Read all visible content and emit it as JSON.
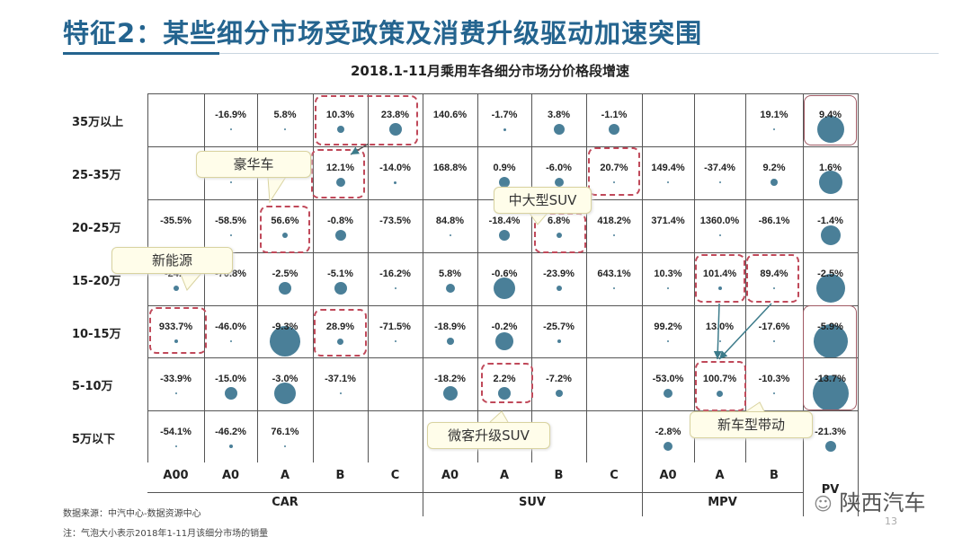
{
  "header": {
    "title": "特征2：某些细分市场受政策及消费升级驱动加速突围"
  },
  "chart_data": {
    "type": "bubble-table",
    "title": "2018.1-11月乘用车各细分市场分价格段增速",
    "rows": [
      "35万以上",
      "25-35万",
      "20-25万",
      "15-20万",
      "10-15万",
      "5-10万",
      "5万以下"
    ],
    "columns": [
      "A00",
      "A0",
      "A",
      "B",
      "C",
      "A0",
      "A",
      "B",
      "C",
      "A0",
      "A",
      "B",
      "PV"
    ],
    "groups": [
      {
        "name": "CAR",
        "span": 5
      },
      {
        "name": "SUV",
        "span": 4
      },
      {
        "name": "MPV",
        "span": 3
      }
    ],
    "bubble_meaning": "气泡大小表示2018年1-11月该细分市场的销量",
    "values": [
      [
        "",
        "-16.9%",
        "5.8%",
        "10.3%",
        "23.8%",
        "140.6%",
        "-1.7%",
        "3.8%",
        "-1.1%",
        "",
        "",
        "19.1%",
        "9.4%"
      ],
      [
        "",
        "",
        "",
        "12.1%",
        "-14.0%",
        "168.8%",
        "0.9%",
        "-6.0%",
        "20.7%",
        "149.4%",
        "-37.4%",
        "9.2%",
        "1.6%"
      ],
      [
        "-35.5%",
        "-58.5%",
        "56.6%",
        "-0.8%",
        "-73.5%",
        "84.8%",
        "-18.4%",
        "6.8%",
        "418.2%",
        "371.4%",
        "1360.0%",
        "-86.1%",
        "-1.4%"
      ],
      [
        "-24.6",
        "-70.8%",
        "-2.5%",
        "-5.1%",
        "-16.2%",
        "5.8%",
        "-0.6%",
        "-23.9%",
        "643.1%",
        "10.3%",
        "101.4%",
        "89.4%",
        "-2.5%"
      ],
      [
        "933.7%",
        "-46.0%",
        "-9.3%",
        "28.9%",
        "-71.5%",
        "-18.9%",
        "-0.2%",
        "-25.7%",
        "",
        "99.2%",
        "13.0%",
        "-17.6%",
        "-5.9%"
      ],
      [
        "-33.9%",
        "-15.0%",
        "-3.0%",
        "-37.1%",
        "",
        "-18.2%",
        "2.2%",
        "-7.2%",
        "",
        "-53.0%",
        "100.7%",
        "-10.3%",
        "-13.7%"
      ],
      [
        "-54.1%",
        "-46.2%",
        "76.1%",
        "",
        "",
        "",
        "",
        "",
        "",
        "-2.8%",
        "",
        "",
        "-21.3%"
      ]
    ],
    "relative_volume": [
      [
        0,
        0.5,
        0.5,
        4,
        7,
        0,
        1.5,
        6,
        6,
        0,
        0,
        0.5,
        15
      ],
      [
        0,
        1,
        0,
        5,
        1.5,
        0,
        6,
        5,
        0.5,
        0.5,
        1,
        4,
        13
      ],
      [
        0,
        0.5,
        3,
        6,
        0,
        0.5,
        6,
        3,
        0.5,
        0,
        0.5,
        0,
        11
      ],
      [
        3,
        0,
        7,
        7,
        0.5,
        5,
        12,
        3,
        0.5,
        0.5,
        2,
        1,
        16
      ],
      [
        2,
        1,
        17,
        3.5,
        0.5,
        4,
        10,
        2,
        0,
        0.5,
        0.5,
        1,
        19
      ],
      [
        0.5,
        7,
        12,
        0.5,
        0,
        8,
        7,
        4,
        0,
        5,
        3.5,
        1,
        20
      ],
      [
        0.5,
        2,
        0.5,
        0,
        0,
        0,
        0,
        0,
        0,
        5,
        0,
        0,
        6
      ]
    ],
    "bubble_color": "#4a7f98",
    "highlight_color": "#c0495a"
  },
  "callouts": [
    "豪华车",
    "新能源",
    "中大型SUV",
    "微客升级SUV",
    "新车型带动"
  ],
  "footer": {
    "source": "数据来源：中汽中心-数据资源中心",
    "note": "注：气泡大小表示2018年1-11月该细分市场的销量",
    "watermark": "陕西汽车",
    "page": "13"
  }
}
